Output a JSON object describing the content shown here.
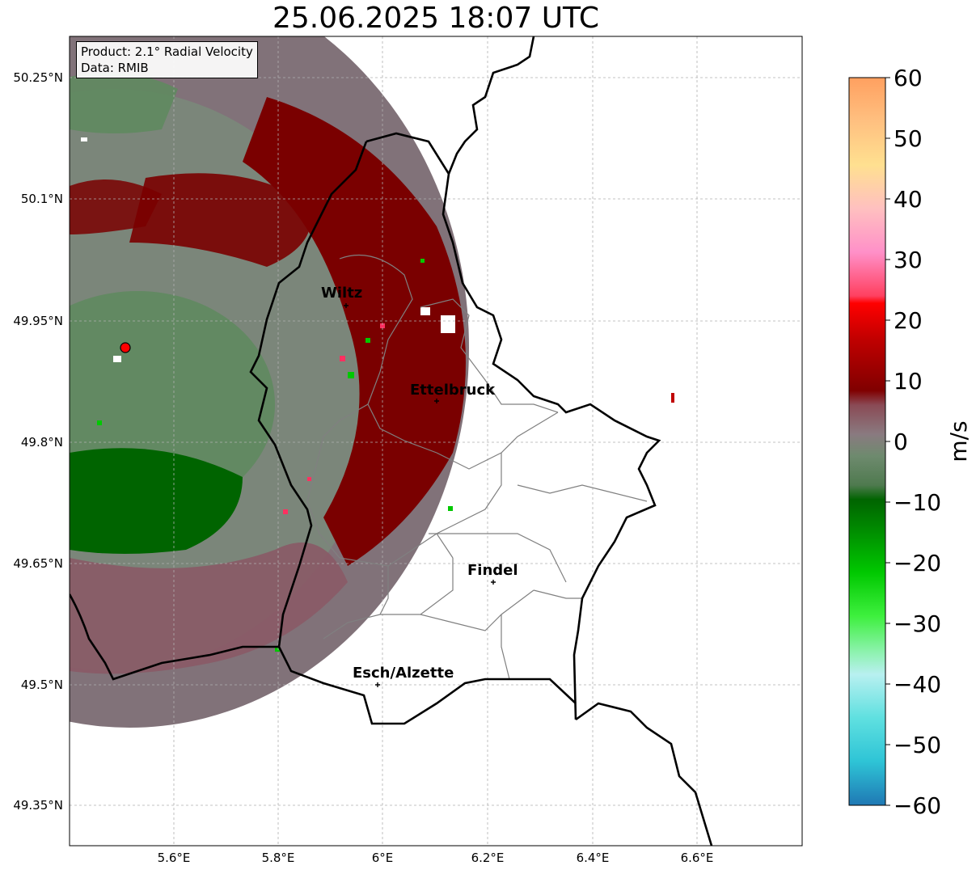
{
  "title": "25.06.2025 18:07 UTC",
  "info": {
    "product": "Product: 2.1° Radial Velocity",
    "data": "Data: RMIB"
  },
  "axes": {
    "lat_ticks": [
      "50.25°N",
      "50.1°N",
      "49.95°N",
      "49.8°N",
      "49.65°N",
      "49.5°N",
      "49.35°N"
    ],
    "lon_ticks": [
      "5.6°E",
      "5.8°E",
      "6°E",
      "6.2°E",
      "6.4°E",
      "6.6°E"
    ]
  },
  "colorbar": {
    "label": "m/s",
    "ticks": [
      "60",
      "50",
      "40",
      "30",
      "20",
      "10",
      "0",
      "−10",
      "−20",
      "−30",
      "−40",
      "−50",
      "−60"
    ],
    "range": [
      -60,
      60
    ],
    "colors": [
      "#1f78b4",
      "#2ec4d6",
      "#5fe0e0",
      "#a8ecec",
      "#8ef2b0",
      "#3ef03e",
      "#00c800",
      "#008a00",
      "#006400",
      "#4f7a4f",
      "#6e8a6e",
      "#8a7a80",
      "#8a5a66",
      "#800000",
      "#c00000",
      "#ff0000",
      "#ff5070",
      "#ff90c8",
      "#ffd0b0",
      "#ffe090",
      "#ffc080",
      "#ffa060"
    ]
  },
  "places": [
    {
      "name": "Wiltz"
    },
    {
      "name": "Ettelbruck"
    },
    {
      "name": "Findel"
    },
    {
      "name": "Esch/Alzette"
    }
  ],
  "radar_site": {
    "color": "#ff0000"
  }
}
